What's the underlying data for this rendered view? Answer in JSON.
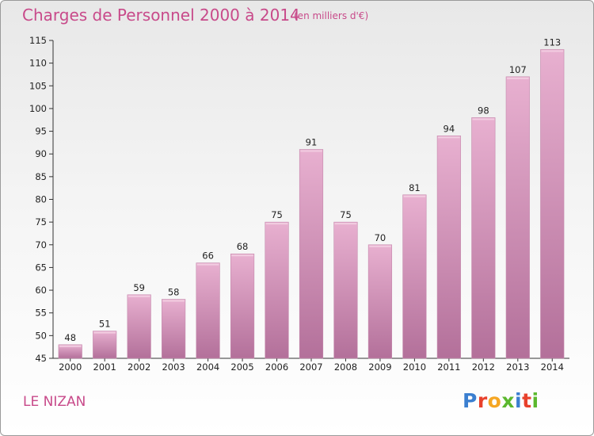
{
  "header": {
    "title": "Charges de Personnel 2000 à 2014",
    "subtitle": "(en milliers d'€)"
  },
  "footer": {
    "commune": "LE NIZAN",
    "logo_letters": [
      "P",
      "r",
      "o",
      "x",
      "i",
      "t",
      "i"
    ],
    "logo_colors": [
      "#3b7fd0",
      "#e8412c",
      "#f5a623",
      "#5cb82e",
      "#3b7fd0",
      "#e8412c",
      "#5cb82e"
    ]
  },
  "chart_data": {
    "type": "bar",
    "title": "Charges de Personnel 2000 à 2014",
    "subtitle": "(en milliers d'€)",
    "categories": [
      "2000",
      "2001",
      "2002",
      "2003",
      "2004",
      "2005",
      "2006",
      "2007",
      "2008",
      "2009",
      "2010",
      "2011",
      "2012",
      "2013",
      "2014"
    ],
    "values": [
      48,
      51,
      59,
      58,
      66,
      68,
      75,
      91,
      75,
      70,
      81,
      94,
      98,
      107,
      113
    ],
    "ylim": [
      45,
      115
    ],
    "yticks": [
      45,
      50,
      55,
      60,
      65,
      70,
      75,
      80,
      85,
      90,
      95,
      100,
      105,
      110,
      115
    ],
    "grid": false,
    "bar_color": "#e3a5c7",
    "bar_color_dark": "#b06f95"
  }
}
